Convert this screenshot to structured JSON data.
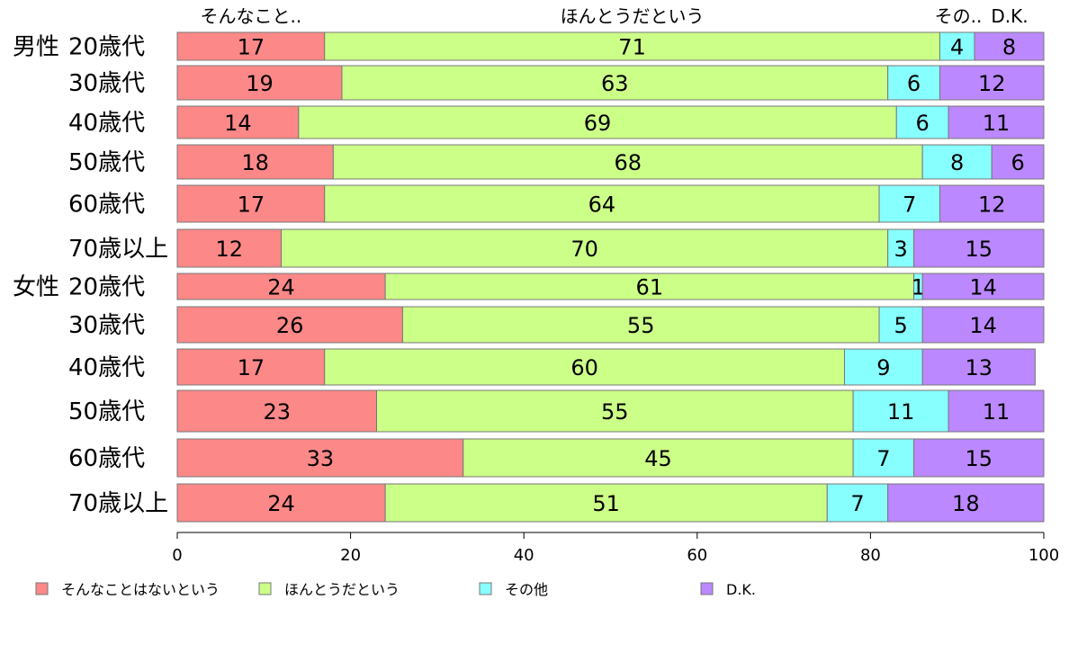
{
  "chart_data": {
    "type": "bar",
    "orientation": "horizontal",
    "stacked": true,
    "title": "",
    "xlabel": "",
    "ylabel": "",
    "xlim": [
      0,
      100
    ],
    "x_ticks": [
      0,
      20,
      40,
      60,
      80,
      100
    ],
    "grid": false,
    "legend_position": "bottom",
    "group_labels": [
      "男性",
      "",
      "",
      "",
      "",
      "",
      "女性",
      "",
      "",
      "",
      "",
      ""
    ],
    "categories": [
      "20歳代",
      "30歳代",
      "40歳代",
      "50歳代",
      "60歳代",
      "70歳以上",
      "20歳代",
      "30歳代",
      "40歳代",
      "50歳代",
      "60歳代",
      "70歳以上"
    ],
    "top_labels": [
      "そんなこと..",
      "ほんとうだという",
      "その..",
      "D.K."
    ],
    "series": [
      {
        "name": "そんなことはないという",
        "color": "#fd8888",
        "values": [
          17,
          19,
          14,
          18,
          17,
          12,
          24,
          26,
          17,
          23,
          33,
          24
        ]
      },
      {
        "name": "ほんとうだという",
        "color": "#ccff88",
        "values": [
          71,
          63,
          69,
          68,
          64,
          70,
          61,
          55,
          60,
          55,
          45,
          51
        ]
      },
      {
        "name": "その他",
        "color": "#88ffff",
        "values": [
          4,
          6,
          6,
          8,
          7,
          3,
          1,
          5,
          9,
          11,
          7,
          7
        ]
      },
      {
        "name": "D.K.",
        "color": "#bb88ff",
        "values": [
          8,
          12,
          11,
          6,
          12,
          15,
          14,
          14,
          13,
          11,
          15,
          18
        ]
      }
    ]
  }
}
